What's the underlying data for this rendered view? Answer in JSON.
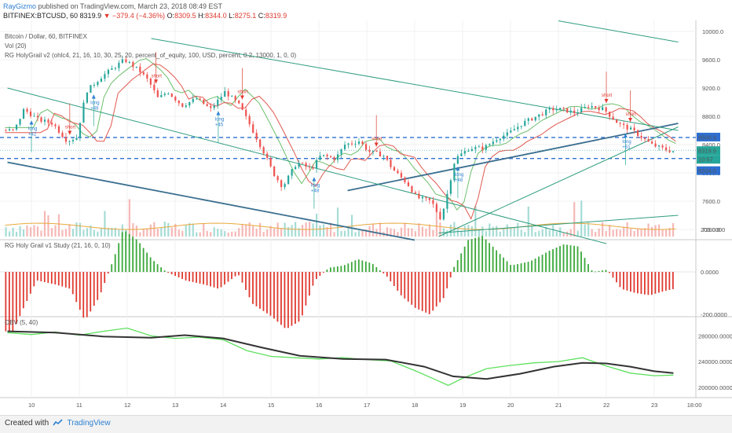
{
  "header": {
    "author": "RayGizmo",
    "published_text": "published on TradingView.com, March 23, 2018 08:49 EST",
    "symbol_interval": "BITFINEX:BTCUSD, 60",
    "last_price": "8319.9",
    "change": "▼ −379.4 (−4.36%)",
    "ohlc": [
      {
        "label": "O:",
        "value": "8309.5"
      },
      {
        "label": "H:",
        "value": "8344.0"
      },
      {
        "label": "L:",
        "value": "8275.1"
      },
      {
        "label": "C:",
        "value": "8319.9"
      }
    ]
  },
  "legends": {
    "main_title": "Bitcoin / Dollar, 60, BITFINEX",
    "volume": "Vol (20)",
    "strategy": "RG HolyGrail v2 (ohlc4, 21, 16, 10, 30, 25, 20, percent_of_equity, 100, USD, percent, 0.2, 13000, 1, 0, 0)",
    "study": "RG Holy Grail v1 Study (21, 16, 0, 10)",
    "obv": "OBV (5, 40)"
  },
  "price_axis": {
    "labels": [
      "10000.0",
      "9600.0",
      "9200.0",
      "8800.0",
      "8400.0",
      "8000.0",
      "7600.0",
      "7200.0"
    ],
    "tags": [
      {
        "text": "8500.9",
        "color": "#2e6fd1"
      },
      {
        "text": "8319.9",
        "color": "#26a69a"
      },
      {
        "text": "10:57",
        "color": "#26a69a"
      },
      {
        "text": "8204.0",
        "color": "#2e6fd1"
      }
    ]
  },
  "study_axis": {
    "labels": [
      "200.0000",
      "0.0000",
      "-200.0000"
    ]
  },
  "obv_axis": {
    "labels": [
      "280000.0000",
      "240000.0000",
      "200000.0000"
    ]
  },
  "time_axis": {
    "labels": [
      "10",
      "11",
      "12",
      "13",
      "14",
      "15",
      "16",
      "17",
      "18",
      "19",
      "20",
      "21",
      "22",
      "23",
      "18:00"
    ]
  },
  "signals": [
    {
      "type": "long",
      "value": "+42"
    },
    {
      "type": "short",
      "value": ""
    },
    {
      "type": "long",
      "value": "+48"
    },
    {
      "type": "short",
      "value": ""
    },
    {
      "type": "long",
      "value": "+45"
    },
    {
      "type": "short",
      "value": ""
    },
    {
      "type": "long",
      "value": "+48"
    },
    {
      "type": "short",
      "value": ""
    },
    {
      "type": "long",
      "value": "+48"
    },
    {
      "type": "short",
      "value": ""
    },
    {
      "type": "long",
      "value": "+51"
    },
    {
      "type": "short",
      "value": ""
    }
  ],
  "footer": {
    "created_with": "Created with",
    "brand": "TradingView"
  },
  "colors": {
    "up": "#26a69a",
    "down": "#ef5350",
    "dash_line": "#2e6fd1",
    "trend": "#3a6e8f",
    "obv": "#333333",
    "obv_fast": "#5ee05e"
  },
  "chart_data": {
    "type": "candlestick",
    "instrument": "BTCUSD",
    "x_ticks": [
      "10",
      "11",
      "12",
      "13",
      "14",
      "15",
      "16",
      "17",
      "18",
      "19",
      "20",
      "21",
      "22",
      "23",
      "18:00"
    ],
    "price_ylim": [
      7000,
      10100
    ],
    "horizontal_levels": [
      8500.9,
      8204.0
    ],
    "close_path": [
      [
        9.7,
        8600
      ],
      [
        9.9,
        8900
      ],
      [
        10.2,
        8750
      ],
      [
        10.5,
        8700
      ],
      [
        10.8,
        8450
      ],
      [
        11.0,
        8500
      ],
      [
        11.2,
        9150
      ],
      [
        11.5,
        9350
      ],
      [
        11.8,
        9500
      ],
      [
        12.0,
        9600
      ],
      [
        12.3,
        9450
      ],
      [
        12.5,
        9300
      ],
      [
        12.7,
        9050
      ],
      [
        12.9,
        9150
      ],
      [
        13.2,
        8950
      ],
      [
        13.5,
        9050
      ],
      [
        13.8,
        8900
      ],
      [
        14.1,
        9150
      ],
      [
        14.4,
        8950
      ],
      [
        14.6,
        8700
      ],
      [
        14.9,
        8300
      ],
      [
        15.1,
        8000
      ],
      [
        15.3,
        7800
      ],
      [
        15.6,
        8150
      ],
      [
        15.9,
        8050
      ],
      [
        16.1,
        8250
      ],
      [
        16.4,
        8200
      ],
      [
        16.6,
        8400
      ],
      [
        16.9,
        8450
      ],
      [
        17.1,
        8300
      ],
      [
        17.4,
        8250
      ],
      [
        17.6,
        8050
      ],
      [
        17.9,
        7850
      ],
      [
        18.1,
        7650
      ],
      [
        18.4,
        7600
      ],
      [
        18.6,
        7350
      ],
      [
        18.7,
        7600
      ],
      [
        18.9,
        8200
      ],
      [
        19.2,
        8350
      ],
      [
        19.5,
        8350
      ],
      [
        19.8,
        8500
      ],
      [
        20.0,
        8550
      ],
      [
        20.3,
        8700
      ],
      [
        20.6,
        8800
      ],
      [
        20.9,
        8900
      ],
      [
        21.1,
        8900
      ],
      [
        21.4,
        8850
      ],
      [
        21.7,
        8950
      ],
      [
        22.0,
        8900
      ],
      [
        22.3,
        8700
      ],
      [
        22.6,
        8600
      ],
      [
        22.8,
        8500
      ],
      [
        23.0,
        8400
      ],
      [
        23.2,
        8350
      ],
      [
        23.4,
        8310
      ]
    ],
    "study_ylim": [
      -300,
      230
    ],
    "study_path": [
      [
        9.6,
        -280
      ],
      [
        9.8,
        -180
      ],
      [
        10.1,
        -40
      ],
      [
        10.5,
        -60
      ],
      [
        10.8,
        -80
      ],
      [
        11.1,
        -230
      ],
      [
        11.4,
        -120
      ],
      [
        11.7,
        60
      ],
      [
        11.9,
        200
      ],
      [
        12.2,
        150
      ],
      [
        12.5,
        60
      ],
      [
        12.8,
        0
      ],
      [
        13.2,
        -40
      ],
      [
        13.6,
        -60
      ],
      [
        13.9,
        -80
      ],
      [
        14.3,
        -10
      ],
      [
        14.6,
        -150
      ],
      [
        15.0,
        -210
      ],
      [
        15.3,
        -270
      ],
      [
        15.6,
        -230
      ],
      [
        15.9,
        -40
      ],
      [
        16.2,
        20
      ],
      [
        16.5,
        30
      ],
      [
        16.8,
        60
      ],
      [
        17.1,
        40
      ],
      [
        17.4,
        -20
      ],
      [
        17.7,
        -110
      ],
      [
        18.0,
        -170
      ],
      [
        18.3,
        -200
      ],
      [
        18.6,
        -120
      ],
      [
        18.8,
        20
      ],
      [
        19.1,
        150
      ],
      [
        19.4,
        170
      ],
      [
        19.7,
        100
      ],
      [
        20.0,
        30
      ],
      [
        20.4,
        50
      ],
      [
        20.8,
        100
      ],
      [
        21.1,
        130
      ],
      [
        21.4,
        120
      ],
      [
        21.7,
        0
      ],
      [
        22.0,
        10
      ],
      [
        22.3,
        -80
      ],
      [
        22.6,
        -100
      ],
      [
        22.9,
        -110
      ],
      [
        23.2,
        -90
      ],
      [
        23.4,
        -80
      ]
    ],
    "obv_ylim": [
      190000,
      300000
    ],
    "obv_slow_path": [
      [
        9.5,
        287000
      ],
      [
        10.5,
        285000
      ],
      [
        11.5,
        279000
      ],
      [
        12.5,
        277000
      ],
      [
        13.2,
        281000
      ],
      [
        14.0,
        276000
      ],
      [
        14.8,
        262000
      ],
      [
        15.6,
        249000
      ],
      [
        16.5,
        244000
      ],
      [
        17.4,
        243000
      ],
      [
        18.2,
        232000
      ],
      [
        18.8,
        217000
      ],
      [
        19.5,
        213000
      ],
      [
        20.2,
        221000
      ],
      [
        20.9,
        232000
      ],
      [
        21.5,
        238000
      ],
      [
        22.0,
        237000
      ],
      [
        22.5,
        232000
      ],
      [
        23.0,
        225000
      ],
      [
        23.4,
        222000
      ]
    ],
    "obv_fast_path": [
      [
        9.5,
        285000
      ],
      [
        10.0,
        282000
      ],
      [
        10.5,
        286000
      ],
      [
        11.0,
        281000
      ],
      [
        11.5,
        287000
      ],
      [
        12.0,
        292000
      ],
      [
        12.5,
        280000
      ],
      [
        13.0,
        276000
      ],
      [
        13.5,
        278000
      ],
      [
        14.0,
        274000
      ],
      [
        14.5,
        257000
      ],
      [
        15.0,
        248000
      ],
      [
        15.5,
        246000
      ],
      [
        16.0,
        244000
      ],
      [
        16.5,
        246000
      ],
      [
        17.0,
        243000
      ],
      [
        17.5,
        241000
      ],
      [
        18.0,
        226000
      ],
      [
        18.4,
        213000
      ],
      [
        18.7,
        203000
      ],
      [
        19.0,
        214000
      ],
      [
        19.5,
        229000
      ],
      [
        20.0,
        234000
      ],
      [
        20.5,
        238000
      ],
      [
        21.0,
        240000
      ],
      [
        21.5,
        246000
      ],
      [
        22.0,
        233000
      ],
      [
        22.5,
        222000
      ],
      [
        23.0,
        218000
      ],
      [
        23.4,
        219000
      ]
    ]
  }
}
